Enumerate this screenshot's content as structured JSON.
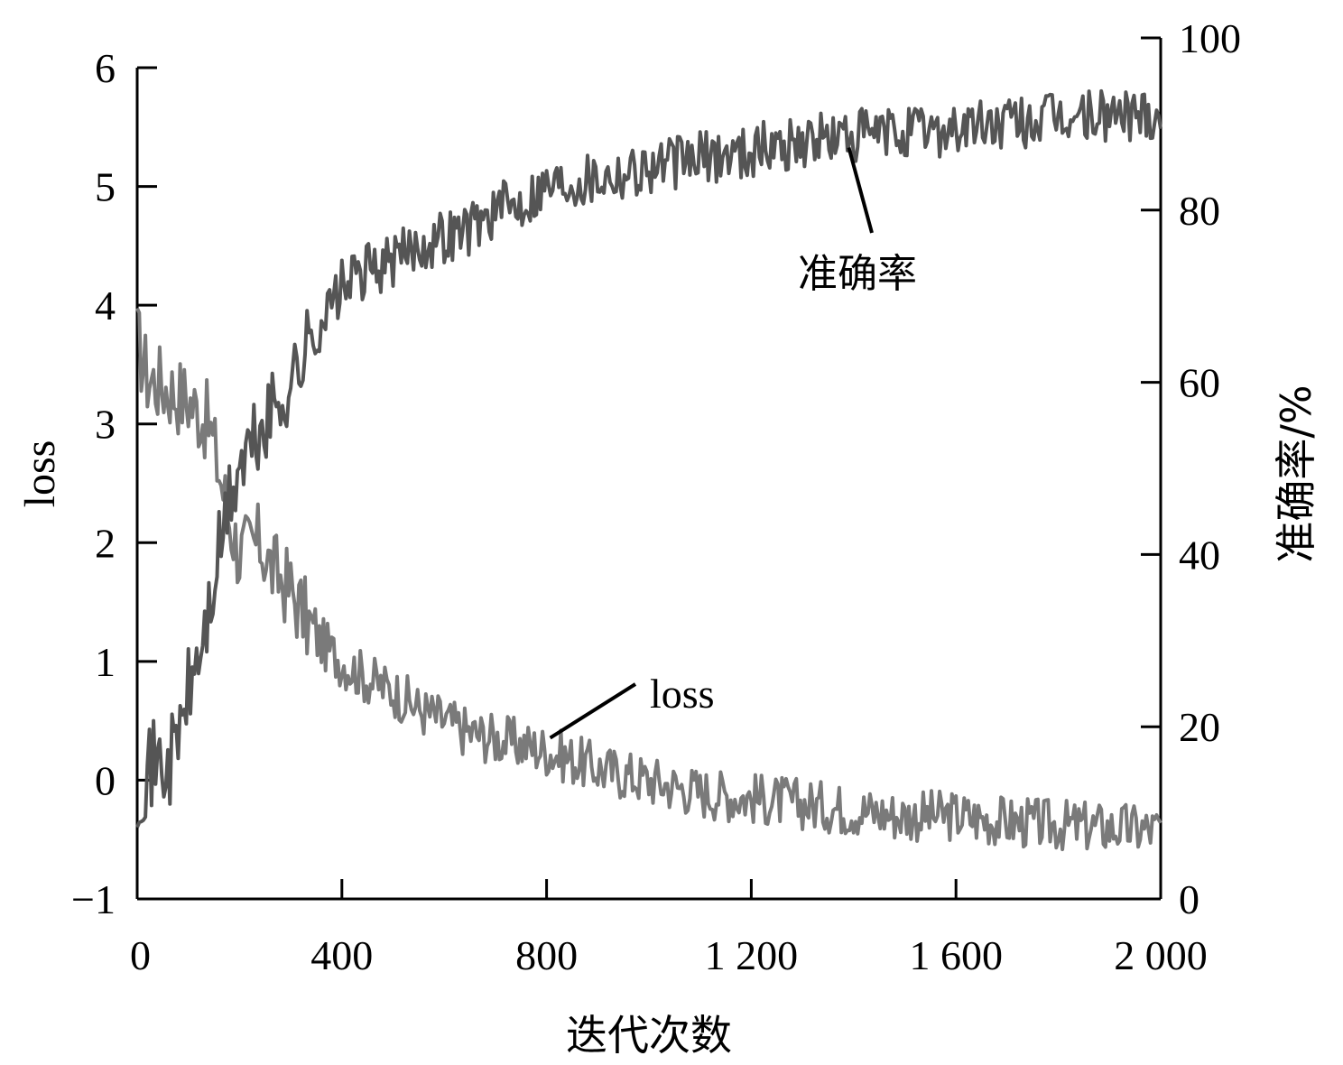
{
  "chart_data": {
    "type": "line",
    "title": "",
    "xlabel": "迭代次数",
    "ylabel_left": "loss",
    "ylabel_right": "准确率/%",
    "xlim": [
      0,
      2000
    ],
    "ylim_left": [
      -1,
      6
    ],
    "ylim_right": [
      0,
      100
    ],
    "x_ticks": [
      "0",
      "400",
      "800",
      "1 200",
      "1 600",
      "2 000"
    ],
    "y_left_ticks": [
      "−1",
      "0",
      "1",
      "2",
      "3",
      "4",
      "5",
      "6"
    ],
    "y_right_ticks": [
      "0",
      "20",
      "40",
      "60",
      "80",
      "100"
    ],
    "grid": false,
    "legend": "none",
    "annotations": [
      {
        "text": "准确率",
        "series": "accuracy",
        "x": 1320
      },
      {
        "text": "loss",
        "series": "loss",
        "x": 800
      }
    ],
    "series": [
      {
        "name": "loss",
        "axis": "left",
        "color": "#7a7a7a",
        "x": [
          0,
          20,
          40,
          60,
          80,
          100,
          120,
          140,
          160,
          180,
          200,
          220,
          240,
          260,
          280,
          300,
          350,
          400,
          450,
          500,
          550,
          600,
          650,
          700,
          750,
          800,
          900,
          1000,
          1100,
          1200,
          1300,
          1400,
          1500,
          1600,
          1700,
          1800,
          1900,
          2000
        ],
        "y": [
          3.7,
          3.4,
          3.35,
          3.3,
          3.25,
          3.2,
          3.1,
          3.0,
          2.6,
          2.2,
          1.9,
          1.95,
          2.0,
          1.8,
          1.7,
          1.6,
          1.2,
          1.0,
          0.85,
          0.75,
          0.6,
          0.5,
          0.4,
          0.35,
          0.3,
          0.25,
          0.1,
          0.0,
          -0.1,
          -0.15,
          -0.2,
          -0.25,
          -0.3,
          -0.3,
          -0.35,
          -0.38,
          -0.4,
          -0.42
        ]
      },
      {
        "name": "准确率",
        "axis": "right",
        "color": "#555555",
        "x": [
          0,
          20,
          40,
          60,
          80,
          100,
          120,
          140,
          160,
          180,
          200,
          220,
          240,
          260,
          280,
          300,
          350,
          400,
          450,
          500,
          550,
          600,
          650,
          700,
          750,
          800,
          900,
          1000,
          1100,
          1200,
          1300,
          1400,
          1500,
          1600,
          1700,
          1800,
          1900,
          2000
        ],
        "y": [
          13,
          15,
          16,
          15,
          19,
          24,
          28,
          33,
          40,
          46,
          50,
          52,
          54,
          56,
          58,
          60,
          66,
          71,
          73,
          74,
          76,
          77,
          78,
          80,
          81,
          83,
          84,
          85,
          86,
          87,
          88,
          88.5,
          89,
          89.5,
          90,
          90.5,
          91,
          91.5
        ]
      }
    ]
  }
}
